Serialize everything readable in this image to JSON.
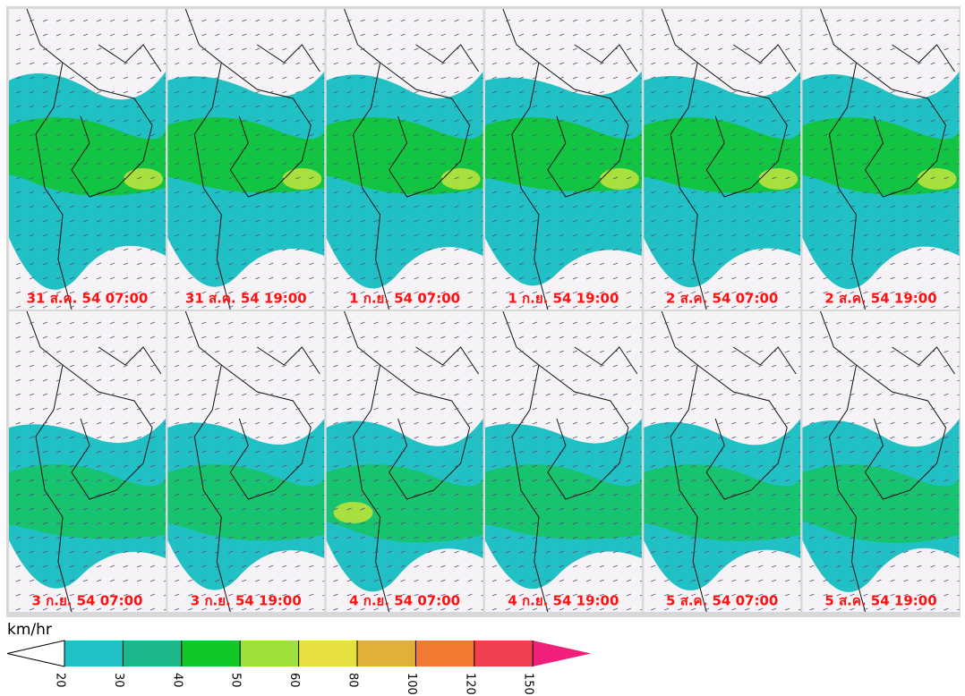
{
  "panels": [
    {
      "label": "31 ส.ค. 54 07:00"
    },
    {
      "label": "31 ส.ค. 54 19:00"
    },
    {
      "label": "1 ก.ย. 54 07:00"
    },
    {
      "label": "1 ก.ย. 54 19:00"
    },
    {
      "label": "2 ส.ค. 54 07:00"
    },
    {
      "label": "2 ส.ค. 54 19:00"
    },
    {
      "label": "3 ก.ย. 54 07:00"
    },
    {
      "label": "3 ก.ย. 54 19:00"
    },
    {
      "label": "4 ก.ย. 54 07:00"
    },
    {
      "label": "4 ก.ย. 54 19:00"
    },
    {
      "label": "5 ส.ค. 54 07:00"
    },
    {
      "label": "5 ส.ค. 54 19:00"
    }
  ],
  "colorbar": {
    "unit": "km/hr",
    "ticks": [
      20,
      30,
      40,
      50,
      60,
      80,
      100,
      120,
      150
    ],
    "colors": [
      "#20c0c4",
      "#1cb88c",
      "#10c828",
      "#9ee03a",
      "#e6e040",
      "#e0b038",
      "#f07a30",
      "#f04050",
      "#f0207a"
    ]
  }
}
